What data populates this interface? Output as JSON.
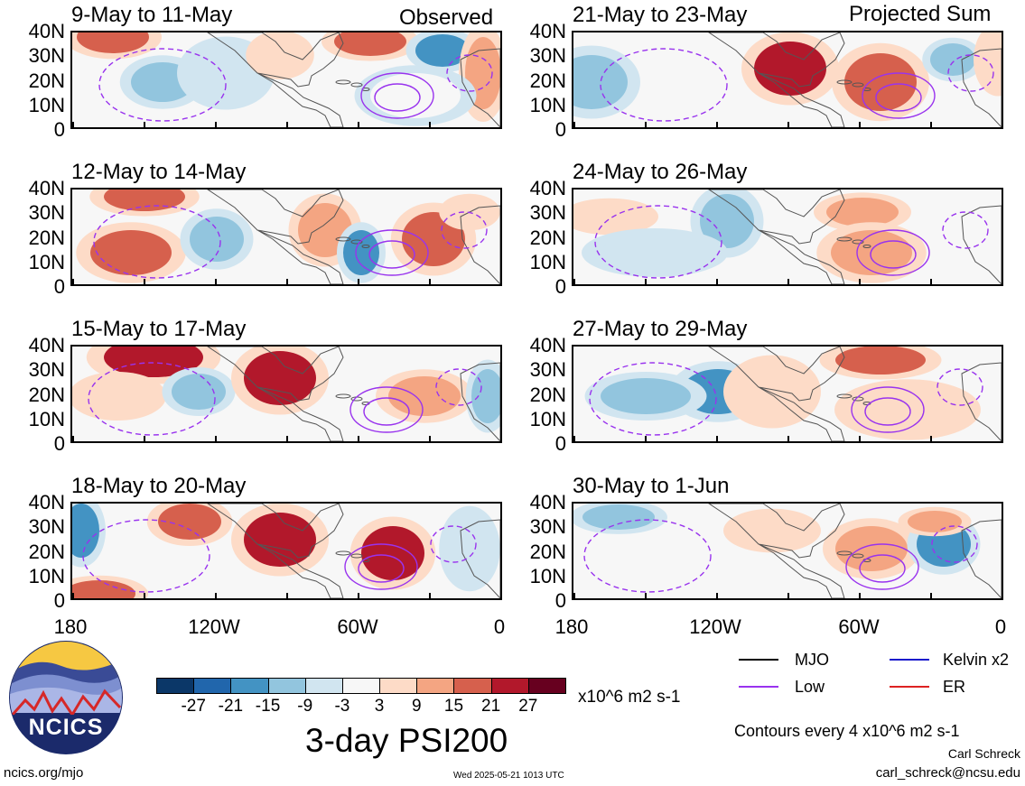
{
  "header": {
    "left_label": "Observed",
    "right_label": "Projected Sum"
  },
  "axes": {
    "lat_labels": [
      "40N",
      "30N",
      "20N",
      "10N",
      "0"
    ],
    "lon_labels_left": [
      "180",
      "120W",
      "60W",
      "0"
    ],
    "lon_labels_right": [
      "180",
      "120W",
      "60W",
      "0"
    ]
  },
  "panels_left": [
    {
      "title": "9-May to 11-May"
    },
    {
      "title": "12-May to 14-May"
    },
    {
      "title": "15-May to 17-May"
    },
    {
      "title": "18-May to 20-May"
    }
  ],
  "panels_right": [
    {
      "title": "21-May to 23-May"
    },
    {
      "title": "24-May to 26-May"
    },
    {
      "title": "27-May to 29-May"
    },
    {
      "title": "30-May to 1-Jun"
    }
  ],
  "colorbar": {
    "colors": [
      "#0b3768",
      "#2166ac",
      "#4393c3",
      "#92c5de",
      "#d1e5f0",
      "#f7f7f7",
      "#fddbc7",
      "#f4a582",
      "#d6604d",
      "#b2182b",
      "#67001f"
    ],
    "labels": [
      "-27",
      "-21",
      "-15",
      "-9",
      "-3",
      "3",
      "9",
      "15",
      "21",
      "27"
    ],
    "units": "x10^6 m2 s-1"
  },
  "title": "3-day PSI200",
  "legend": {
    "items": [
      {
        "label": "MJO",
        "color": "#000000"
      },
      {
        "label": "Kelvin x2",
        "color": "#1a1acc"
      },
      {
        "label": "Low",
        "color": "#9933ee"
      },
      {
        "label": "ER",
        "color": "#dd2222"
      }
    ],
    "contours_note": "Contours every 4 x10^6 m2 s-1"
  },
  "footer": {
    "logo_text": "NCICS",
    "url": "ncics.org/mjo",
    "timestamp": "Wed 2025-05-21 1013 UTC",
    "author": "Carl Schreck",
    "email": "carl_schreck@ncsu.edu"
  }
}
